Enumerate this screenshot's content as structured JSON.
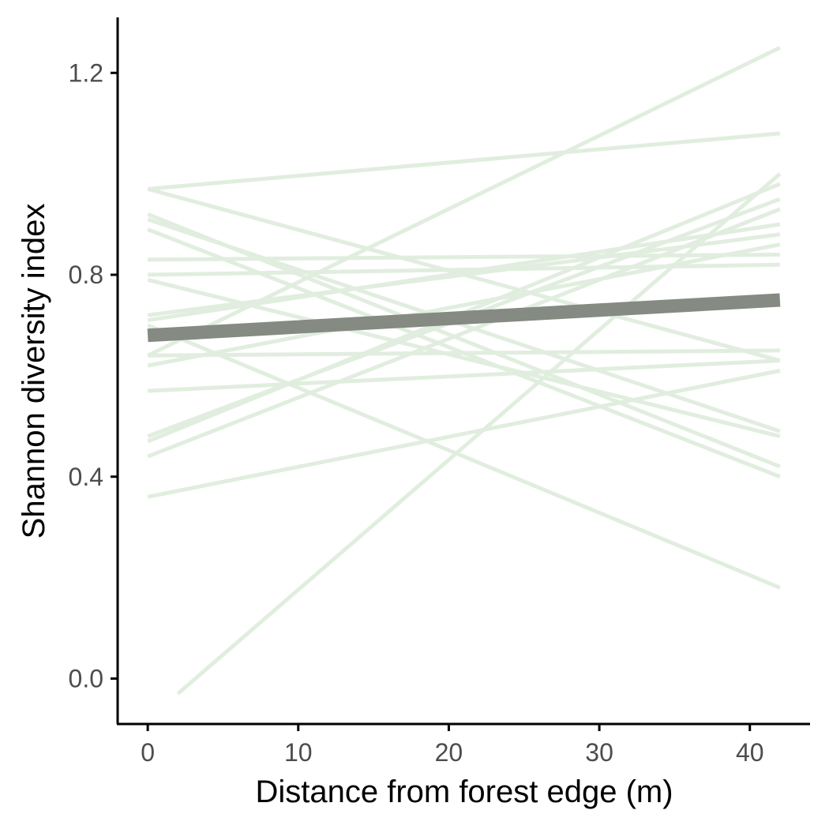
{
  "chart_data": {
    "type": "line",
    "title": "",
    "xlabel": "Distance from forest edge (m)",
    "ylabel": "Shannon diversity index",
    "xlim": [
      -2,
      44
    ],
    "ylim": [
      -0.09,
      1.31
    ],
    "x_ticks": [
      0,
      10,
      20,
      30,
      40
    ],
    "x_tick_labels": [
      "0",
      "10",
      "20",
      "30",
      "40"
    ],
    "y_ticks": [
      0.0,
      0.4,
      0.8,
      1.2
    ],
    "y_tick_labels": [
      "0.0",
      "0.4",
      "0.8",
      "1.2"
    ],
    "grid": false,
    "legend": "none",
    "colors": {
      "site_lines": "#e1eedf",
      "overall_line": "#858a82",
      "axis": "#000000"
    },
    "site_lines": [
      {
        "x": [
          0,
          42
        ],
        "y": [
          0.97,
          1.08
        ]
      },
      {
        "x": [
          0,
          42
        ],
        "y": [
          0.64,
          1.25
        ]
      },
      {
        "x": [
          2,
          42
        ],
        "y": [
          -0.03,
          1.0
        ]
      },
      {
        "x": [
          0,
          42
        ],
        "y": [
          0.97,
          0.63
        ]
      },
      {
        "x": [
          0,
          42
        ],
        "y": [
          0.92,
          0.42
        ]
      },
      {
        "x": [
          0,
          42
        ],
        "y": [
          0.91,
          0.49
        ]
      },
      {
        "x": [
          0,
          42
        ],
        "y": [
          0.89,
          0.4
        ]
      },
      {
        "x": [
          0,
          42
        ],
        "y": [
          0.83,
          0.84
        ]
      },
      {
        "x": [
          0,
          42
        ],
        "y": [
          0.8,
          0.82
        ]
      },
      {
        "x": [
          0,
          42
        ],
        "y": [
          0.79,
          0.48
        ]
      },
      {
        "x": [
          0,
          42
        ],
        "y": [
          0.72,
          0.88
        ]
      },
      {
        "x": [
          0,
          42
        ],
        "y": [
          0.71,
          0.9
        ]
      },
      {
        "x": [
          0,
          42
        ],
        "y": [
          0.62,
          0.86
        ]
      },
      {
        "x": [
          0,
          42
        ],
        "y": [
          0.57,
          0.63
        ]
      },
      {
        "x": [
          0,
          42
        ],
        "y": [
          0.48,
          0.95
        ]
      },
      {
        "x": [
          0,
          42
        ],
        "y": [
          0.47,
          0.98
        ]
      },
      {
        "x": [
          0,
          42
        ],
        "y": [
          0.44,
          0.93
        ]
      },
      {
        "x": [
          0,
          42
        ],
        "y": [
          0.7,
          0.18
        ]
      },
      {
        "x": [
          0,
          42
        ],
        "y": [
          0.64,
          0.65
        ]
      },
      {
        "x": [
          0,
          42
        ],
        "y": [
          0.36,
          0.61
        ]
      }
    ],
    "overall_line": {
      "x": [
        0,
        42
      ],
      "y": [
        0.68,
        0.75
      ]
    }
  }
}
